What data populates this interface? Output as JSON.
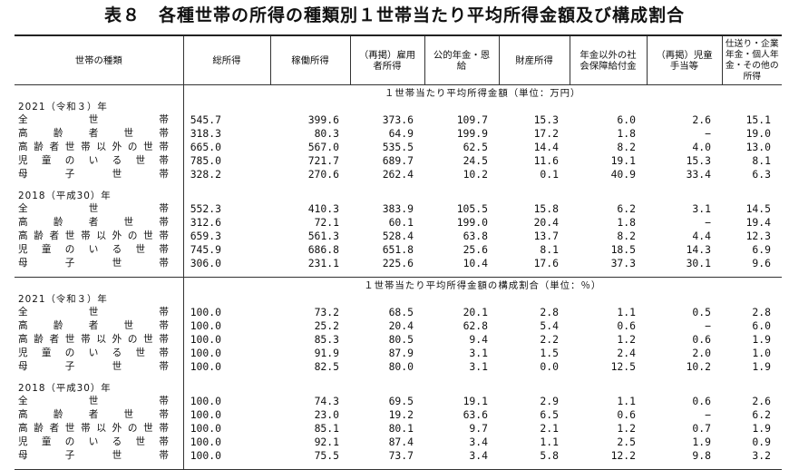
{
  "title": "表８　各種世帯の所得の種類別１世帯当たり平均所得金額及び構成割合",
  "columns": [
    "世帯の種類",
    "総所得",
    "稼働所得",
    "（再掲）雇用者所得",
    "公的年金・恩　　給",
    "財産所得",
    "年金以外の社会保障給付金",
    "（再掲）児童手当等",
    "仕送り・企業年金・個人年金・その他の所得"
  ],
  "sections": [
    {
      "caption": "１世帯当たり平均所得金額（単位：万円）",
      "years": [
        {
          "label": "2021（令和３）年",
          "rows": [
            {
              "name": "全世帯",
              "values": [
                "545.7",
                "399.6",
                "373.6",
                "109.7",
                "15.3",
                "6.0",
                "2.6",
                "15.1"
              ]
            },
            {
              "name": "高齢者世帯",
              "values": [
                "318.3",
                "80.3",
                "64.9",
                "199.9",
                "17.2",
                "1.8",
                "−",
                "19.0"
              ]
            },
            {
              "name": "高齢者世帯以外の世帯",
              "values": [
                "665.0",
                "567.0",
                "535.5",
                "62.5",
                "14.4",
                "8.2",
                "4.0",
                "13.0"
              ]
            },
            {
              "name": "児童のいる世帯",
              "values": [
                "785.0",
                "721.7",
                "689.7",
                "24.5",
                "11.6",
                "19.1",
                "15.3",
                "8.1"
              ]
            },
            {
              "name": "母子世帯",
              "values": [
                "328.2",
                "270.6",
                "262.4",
                "10.2",
                "0.1",
                "40.9",
                "33.4",
                "6.3"
              ]
            }
          ]
        },
        {
          "label": "2018（平成30）年",
          "rows": [
            {
              "name": "全世帯",
              "values": [
                "552.3",
                "410.3",
                "383.9",
                "105.5",
                "15.8",
                "6.2",
                "3.1",
                "14.5"
              ]
            },
            {
              "name": "高齢者世帯",
              "values": [
                "312.6",
                "72.1",
                "60.1",
                "199.0",
                "20.4",
                "1.8",
                "−",
                "19.4"
              ]
            },
            {
              "name": "高齢者世帯以外の世帯",
              "values": [
                "659.3",
                "561.3",
                "528.4",
                "63.8",
                "13.7",
                "8.2",
                "4.4",
                "12.3"
              ]
            },
            {
              "name": "児童のいる世帯",
              "values": [
                "745.9",
                "686.8",
                "651.8",
                "25.6",
                "8.1",
                "18.5",
                "14.3",
                "6.9"
              ]
            },
            {
              "name": "母子世帯",
              "values": [
                "306.0",
                "231.1",
                "225.6",
                "10.4",
                "17.6",
                "37.3",
                "30.1",
                "9.6"
              ]
            }
          ]
        }
      ]
    },
    {
      "caption": "１世帯当たり平均所得金額の構成割合（単位：％）",
      "years": [
        {
          "label": "2021（令和３）年",
          "rows": [
            {
              "name": "全世帯",
              "values": [
                "100.0",
                "73.2",
                "68.5",
                "20.1",
                "2.8",
                "1.1",
                "0.5",
                "2.8"
              ]
            },
            {
              "name": "高齢者世帯",
              "values": [
                "100.0",
                "25.2",
                "20.4",
                "62.8",
                "5.4",
                "0.6",
                "−",
                "6.0"
              ]
            },
            {
              "name": "高齢者世帯以外の世帯",
              "values": [
                "100.0",
                "85.3",
                "80.5",
                "9.4",
                "2.2",
                "1.2",
                "0.6",
                "1.9"
              ]
            },
            {
              "name": "児童のいる世帯",
              "values": [
                "100.0",
                "91.9",
                "87.9",
                "3.1",
                "1.5",
                "2.4",
                "2.0",
                "1.0"
              ]
            },
            {
              "name": "母子世帯",
              "values": [
                "100.0",
                "82.5",
                "80.0",
                "3.1",
                "0.0",
                "12.5",
                "10.2",
                "1.9"
              ]
            }
          ]
        },
        {
          "label": "2018（平成30）年",
          "rows": [
            {
              "name": "全世帯",
              "values": [
                "100.0",
                "74.3",
                "69.5",
                "19.1",
                "2.9",
                "1.1",
                "0.6",
                "2.6"
              ]
            },
            {
              "name": "高齢者世帯",
              "values": [
                "100.0",
                "23.0",
                "19.2",
                "63.6",
                "6.5",
                "0.6",
                "−",
                "6.2"
              ]
            },
            {
              "name": "高齢者世帯以外の世帯",
              "values": [
                "100.0",
                "85.1",
                "80.1",
                "9.7",
                "2.1",
                "1.2",
                "0.7",
                "1.9"
              ]
            },
            {
              "name": "児童のいる世帯",
              "values": [
                "100.0",
                "92.1",
                "87.4",
                "3.4",
                "1.1",
                "2.5",
                "1.9",
                "0.9"
              ]
            },
            {
              "name": "母子世帯",
              "values": [
                "100.0",
                "75.5",
                "73.7",
                "3.4",
                "5.8",
                "12.2",
                "9.8",
                "3.2"
              ]
            }
          ]
        }
      ]
    }
  ]
}
